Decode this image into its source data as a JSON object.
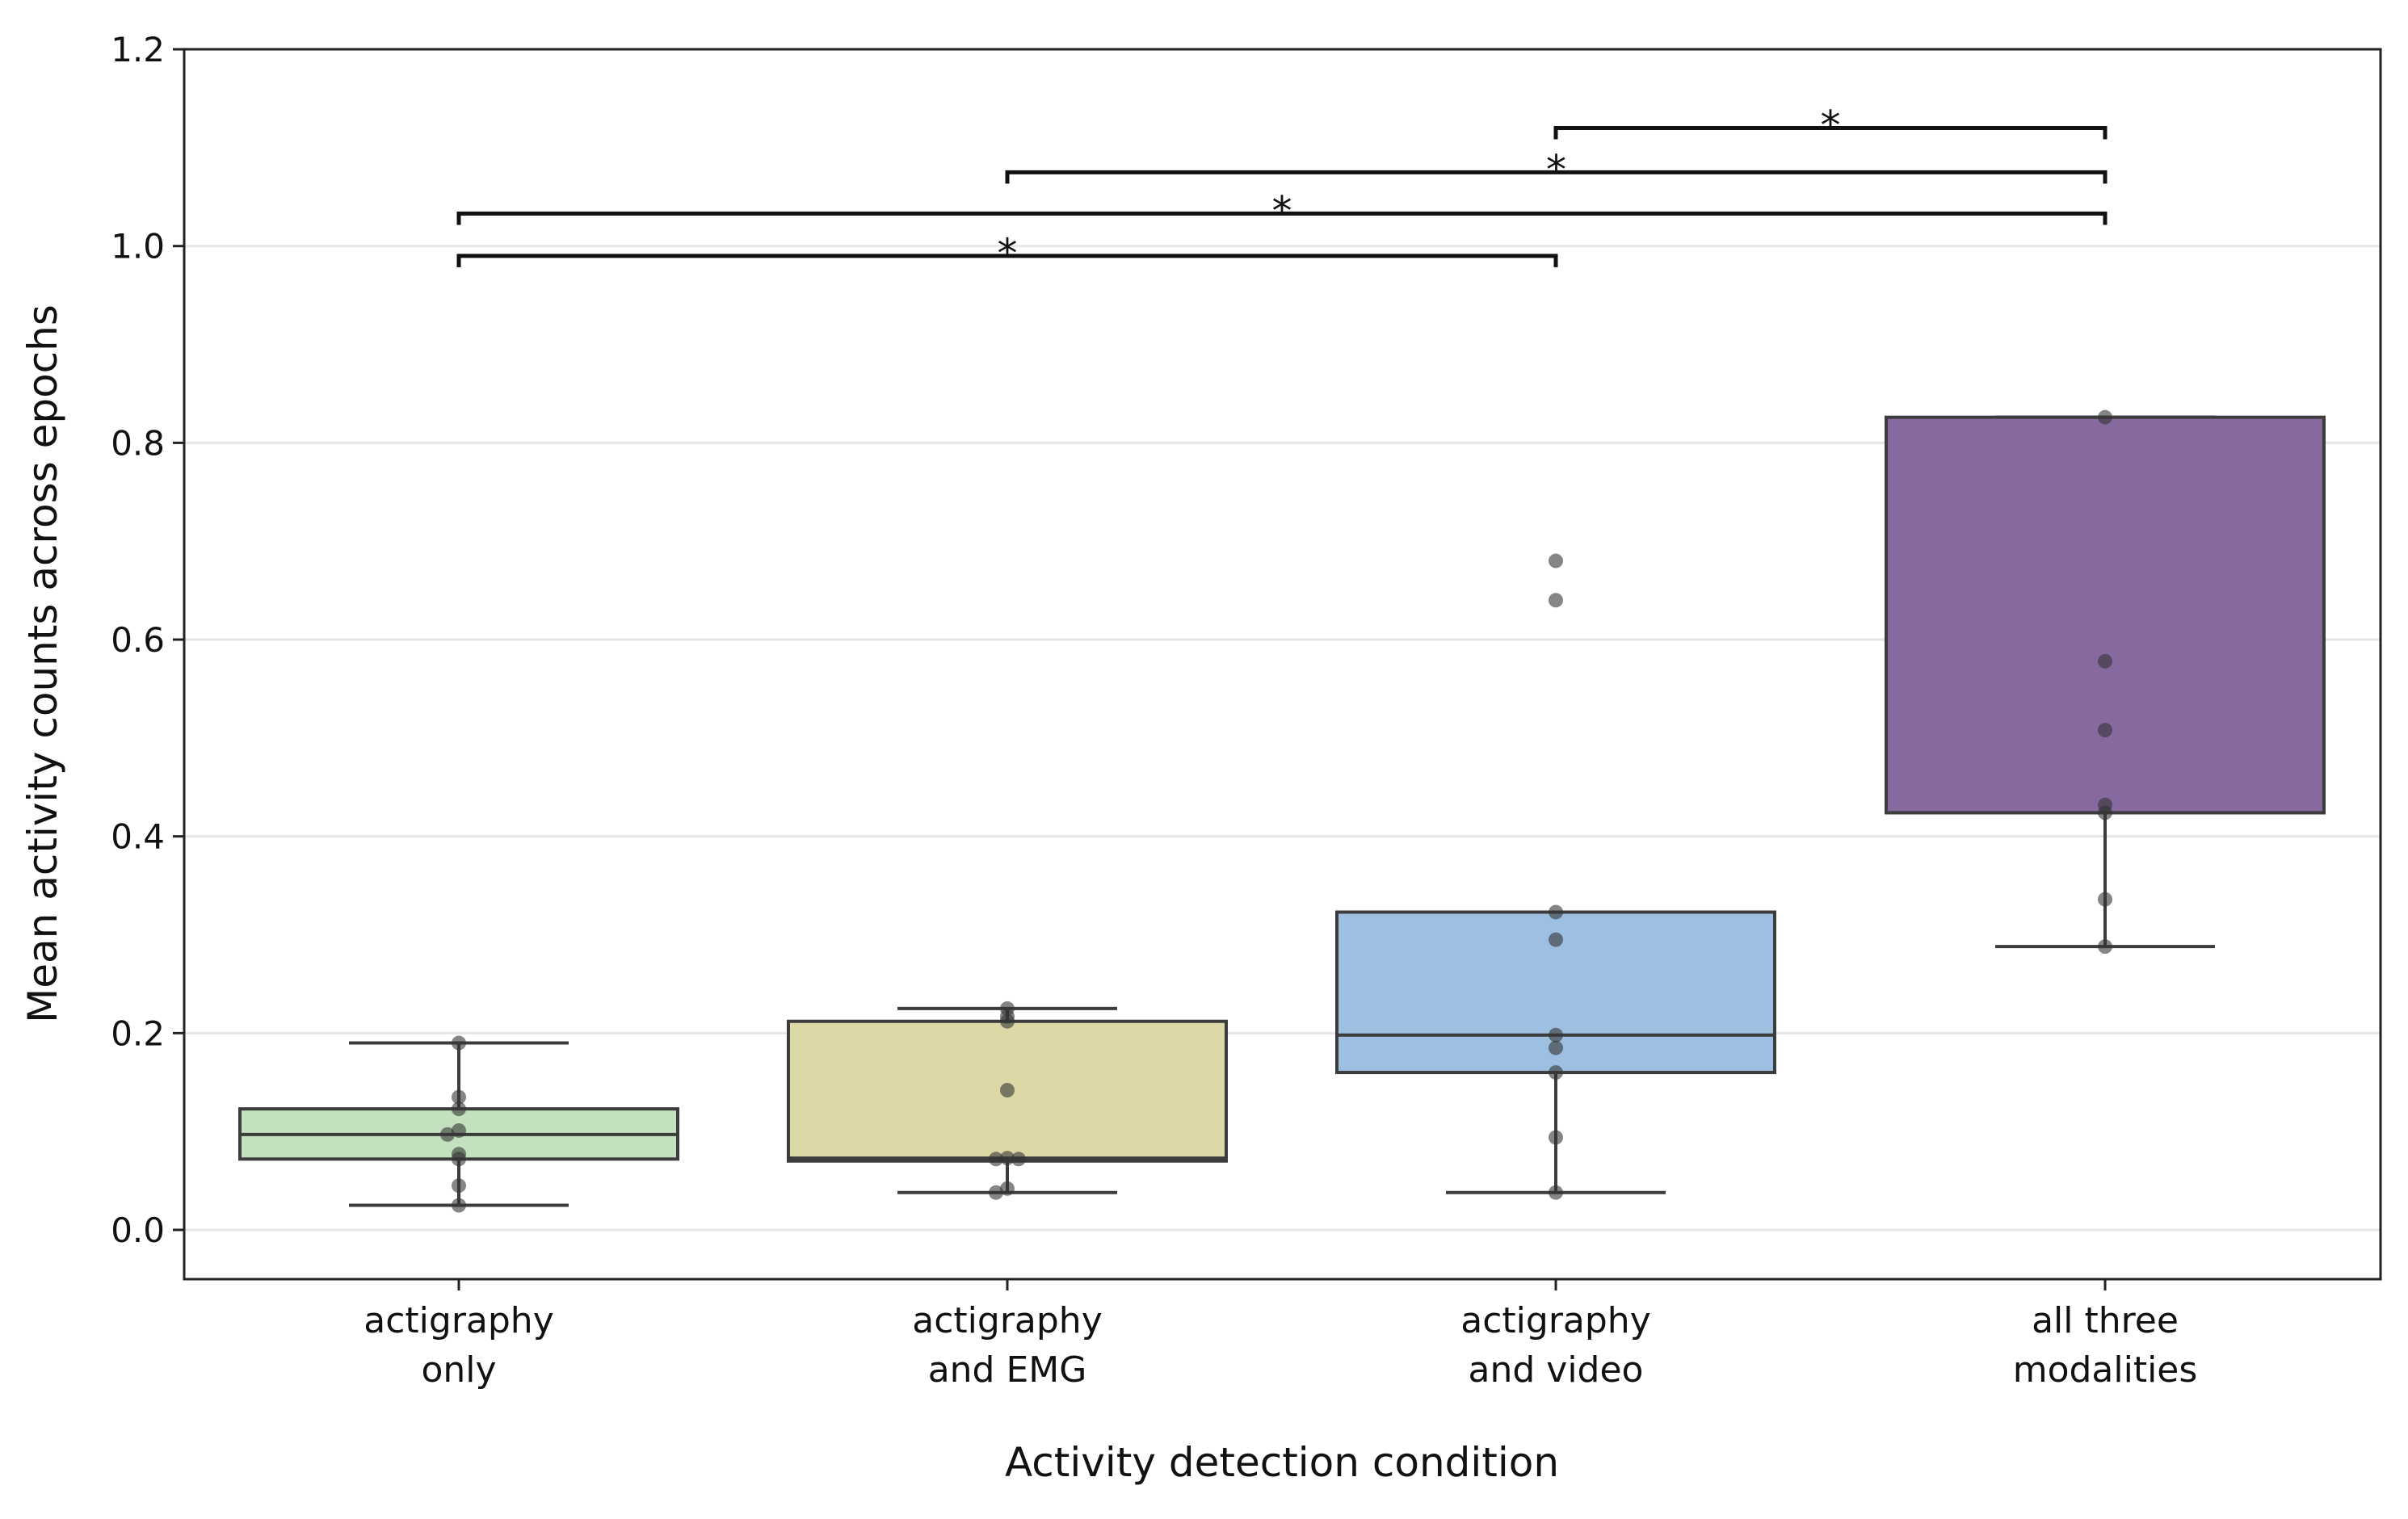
{
  "chart_data": {
    "type": "box",
    "title": "",
    "xlabel": "Activity detection condition",
    "ylabel": "Mean activity counts across epochs",
    "ylim": [
      -0.05,
      1.2
    ],
    "yticks": [
      0.0,
      0.2,
      0.4,
      0.6,
      0.8,
      1.0,
      1.2
    ],
    "ytick_labels": [
      "0.0",
      "0.2",
      "0.4",
      "0.6",
      "0.8",
      "1.0",
      "1.2"
    ],
    "grid": "horizontal",
    "categories": [
      {
        "line1": "actigraphy",
        "line2": "only"
      },
      {
        "line1": "actigraphy",
        "line2": "and EMG"
      },
      {
        "line1": "actigraphy",
        "line2": "and video"
      },
      {
        "line1": "all three",
        "line2": "modalities"
      }
    ],
    "boxes": [
      {
        "whislo": 0.025,
        "q1": 0.072,
        "med": 0.097,
        "q3": 0.123,
        "whishi": 0.19,
        "color": "#c3e0bf",
        "points": [
          0.19,
          0.135,
          0.123,
          0.101,
          0.097,
          0.077,
          0.072,
          0.045,
          0.025
        ]
      },
      {
        "whislo": 0.038,
        "q1": 0.07,
        "med": 0.073,
        "q3": 0.212,
        "whishi": 0.225,
        "color": "#ddd9a7",
        "points": [
          0.225,
          0.217,
          0.212,
          0.142,
          0.073,
          0.072,
          0.072,
          0.042,
          0.038
        ]
      },
      {
        "whislo": 0.038,
        "q1": 0.16,
        "med": 0.198,
        "q3": 0.323,
        "whishi": 0.323,
        "color": "#9dbfe2",
        "points": [
          0.68,
          0.64,
          0.323,
          0.295,
          0.198,
          0.185,
          0.16,
          0.094,
          0.038
        ]
      },
      {
        "whislo": 0.288,
        "q1": 0.424,
        "med": 0.424,
        "q3": 0.826,
        "whishi": 0.826,
        "color": "#866a9f",
        "points": [
          0.826,
          0.578,
          0.508,
          0.432,
          0.424,
          0.336,
          0.288
        ]
      }
    ],
    "significance": [
      {
        "from": 0,
        "to": 2,
        "y": 0.99,
        "label": "*"
      },
      {
        "from": 0,
        "to": 3,
        "y": 1.033,
        "label": "*"
      },
      {
        "from": 1,
        "to": 3,
        "y": 1.075,
        "label": "*"
      },
      {
        "from": 2,
        "to": 3,
        "y": 1.12,
        "label": "*"
      }
    ]
  }
}
